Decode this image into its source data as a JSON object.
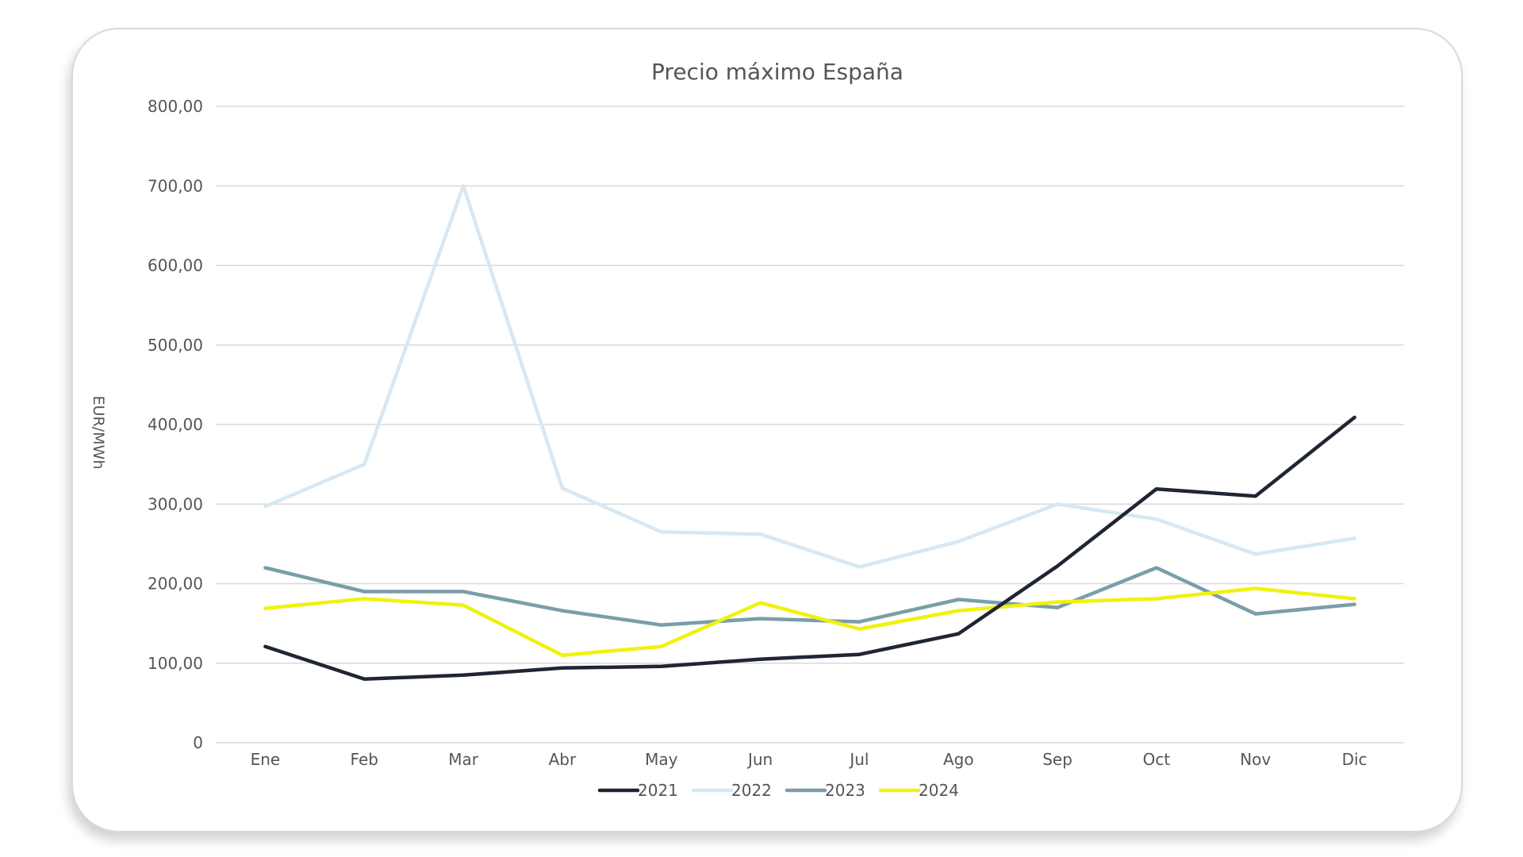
{
  "chart_data": {
    "type": "line",
    "title": "Precio máximo España",
    "xlabel": "",
    "ylabel": "EUR/MWh",
    "categories": [
      "Ene",
      "Feb",
      "Mar",
      "Abr",
      "May",
      "Jun",
      "Jul",
      "Ago",
      "Sep",
      "Oct",
      "Nov",
      "Dic"
    ],
    "ylim": [
      0,
      800
    ],
    "yticks": [
      0,
      100,
      200,
      300,
      400,
      500,
      600,
      700,
      800
    ],
    "ytick_labels": [
      "0",
      "100,00",
      "200,00",
      "300,00",
      "400,00",
      "500,00",
      "600,00",
      "700,00",
      "800,00"
    ],
    "grid": true,
    "legend_position": "bottom",
    "series": [
      {
        "name": "2021",
        "color": "#1f2633",
        "values": [
          121,
          80,
          85,
          94,
          96,
          105,
          111,
          137,
          222,
          319,
          310,
          409
        ]
      },
      {
        "name": "2022",
        "color": "#d6e8f3",
        "values": [
          297,
          350,
          700,
          320,
          265,
          262,
          221,
          253,
          300,
          281,
          237,
          257
        ]
      },
      {
        "name": "2023",
        "color": "#7a9ea9",
        "values": [
          220,
          190,
          190,
          166,
          148,
          156,
          152,
          180,
          170,
          220,
          162,
          174
        ]
      },
      {
        "name": "2024",
        "color": "#f0f20d",
        "values": [
          169,
          181,
          173,
          110,
          121,
          176,
          143,
          166,
          177,
          181,
          194,
          181
        ]
      }
    ]
  }
}
